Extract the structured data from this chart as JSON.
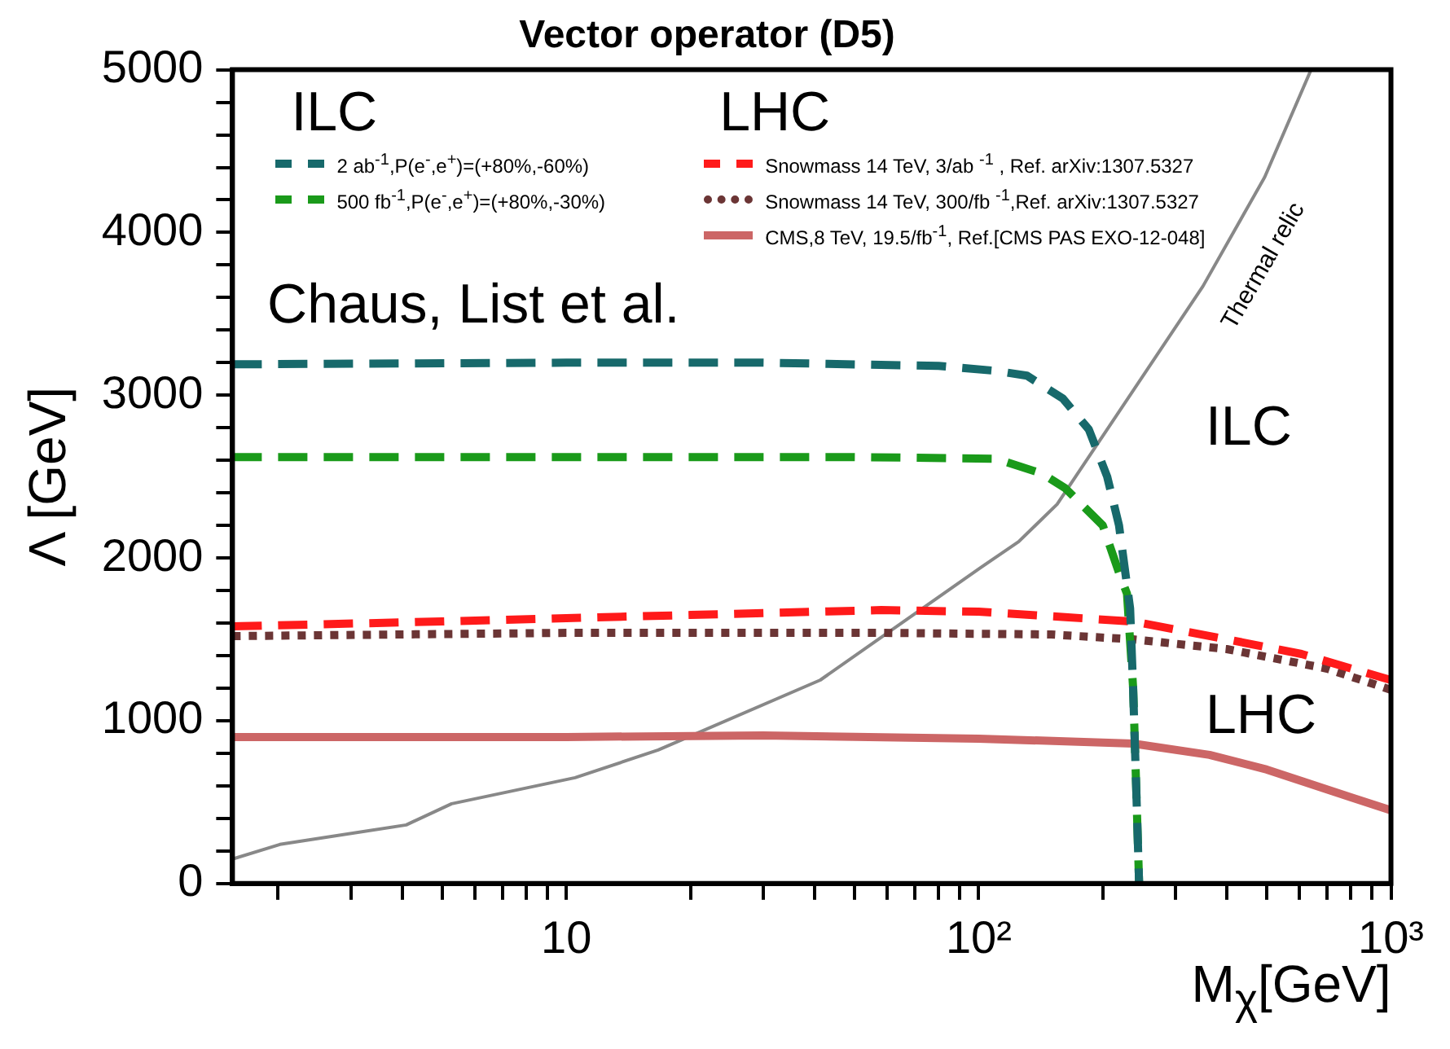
{
  "chart_data": {
    "type": "line",
    "title": "Vector operator (D5)",
    "xlabel": "M$_{χ}$[GeV]",
    "ylabel": "Λ [GeV]",
    "log": "x",
    "grid": false,
    "legend": "top",
    "marker": "none",
    "xlim": [
      1.55,
      1000
    ],
    "ylim": [
      0,
      5000
    ],
    "xticks": [
      {
        "value": 2,
        "label": null
      },
      {
        "value": 3,
        "label": null
      },
      {
        "value": 4,
        "label": null
      },
      {
        "value": 5,
        "label": null
      },
      {
        "value": 6,
        "label": null
      },
      {
        "value": 7,
        "label": null
      },
      {
        "value": 8,
        "label": null
      },
      {
        "value": 9,
        "label": null
      },
      10,
      {
        "value": 20,
        "label": null
      },
      {
        "value": 30,
        "label": null
      },
      {
        "value": 40,
        "label": null
      },
      {
        "value": 50,
        "label": null
      },
      {
        "value": 60,
        "label": null
      },
      {
        "value": 70,
        "label": null
      },
      {
        "value": 80,
        "label": null
      },
      {
        "value": 90,
        "label": null
      },
      {
        "value": 100,
        "label": "10²"
      },
      {
        "value": 200,
        "label": null
      },
      {
        "value": 300,
        "label": null
      },
      {
        "value": 400,
        "label": null
      },
      {
        "value": 500,
        "label": null
      },
      {
        "value": 600,
        "label": null
      },
      {
        "value": 700,
        "label": null
      },
      {
        "value": 800,
        "label": null
      },
      {
        "value": 900,
        "label": null
      },
      {
        "value": 1000,
        "label": "10³"
      }
    ],
    "yticks": [
      0,
      {
        "value": 200,
        "label": null
      },
      {
        "value": 400,
        "label": null
      },
      {
        "value": 600,
        "label": null
      },
      {
        "value": 800,
        "label": null
      },
      1000,
      {
        "value": 1200,
        "label": null
      },
      {
        "value": 1400,
        "label": null
      },
      {
        "value": 1600,
        "label": null
      },
      {
        "value": 1800,
        "label": null
      },
      2000,
      {
        "value": 2200,
        "label": null
      },
      {
        "value": 2400,
        "label": null
      },
      {
        "value": 2600,
        "label": null
      },
      {
        "value": 2800,
        "label": null
      },
      3000,
      {
        "value": 3200,
        "label": null
      },
      {
        "value": 3400,
        "label": null
      },
      {
        "value": 3600,
        "label": null
      },
      {
        "value": 3800,
        "label": null
      },
      4000,
      {
        "value": 4200,
        "label": null
      },
      {
        "value": 4400,
        "label": null
      },
      {
        "value": 4600,
        "label": null
      },
      {
        "value": 4800,
        "label": null
      },
      5000
    ],
    "annotations": [
      "ILC",
      "LHC",
      "Chaus, List et al.",
      "ILC",
      "LHC",
      "Thermal relic"
    ],
    "series": [
      {
        "name": "2 ab$^{-1}$,P(e$^{-}$,e$^{+}$)=(+80%,-60%)",
        "color": "#17696b",
        "line_style": "dashed",
        "x": [
          1.55,
          10,
          30,
          80,
          110,
          131,
          160,
          185,
          205,
          219,
          233,
          237,
          241,
          245
        ],
        "values": [
          3190,
          3200,
          3200,
          3180,
          3150,
          3120,
          2980,
          2790,
          2500,
          2200,
          1690,
          1190,
          600,
          0
        ]
      },
      {
        "name": "500 fb$^{-1}$,P(e$^{-}$,e$^{+}$)=(+80%,-30%)",
        "color": "#1a9a1a",
        "line_style": "dashed",
        "x": [
          1.55,
          10,
          50,
          110,
          142,
          162,
          200,
          219,
          229,
          237,
          241,
          245
        ],
        "values": [
          2620,
          2620,
          2620,
          2610,
          2520,
          2430,
          2200,
          1910,
          1780,
          1200,
          600,
          0
        ]
      },
      {
        "name": "Snowmass 14 TeV, 3/ab $^{-1}$ , Ref. arXiv:1307.5327",
        "color": "#ff1a1a",
        "line_style": "dashed",
        "x": [
          1.55,
          5,
          20,
          58,
          100,
          237,
          400,
          607,
          1000
        ],
        "values": [
          1580,
          1610,
          1650,
          1680,
          1670,
          1610,
          1500,
          1410,
          1250
        ]
      },
      {
        "name": "Snowmass 14 TeV, 300/fb $^{-1}$,Ref. arXiv:1307.5327",
        "color": "#6b3535",
        "line_style": "dotted",
        "x": [
          1.55,
          10,
          58,
          150,
          237,
          400,
          700,
          1000
        ],
        "values": [
          1520,
          1540,
          1540,
          1530,
          1500,
          1440,
          1320,
          1190
        ]
      },
      {
        "name": "CMS,8 TeV, 19.5/fb$^{-1}$, Ref.[CMS PAS EXO-12-048]",
        "color": "#cc6666",
        "line_style": "solid",
        "x": [
          1.55,
          10,
          30,
          100,
          237,
          363,
          500,
          607,
          800,
          1000
        ],
        "values": [
          900,
          900,
          910,
          890,
          860,
          790,
          700,
          630,
          530,
          450
        ]
      },
      {
        "color": "#888888",
        "line_style": "solid",
        "x": [
          1.55,
          2.02,
          4.09,
          5.27,
          10.5,
          16.7,
          41.3,
          101,
          125,
          155,
          350,
          494,
          640
        ],
        "values": [
          150,
          240,
          360,
          490,
          650,
          820,
          1250,
          1940,
          2100,
          2330,
          3670,
          4340,
          5000
        ]
      }
    ]
  }
}
